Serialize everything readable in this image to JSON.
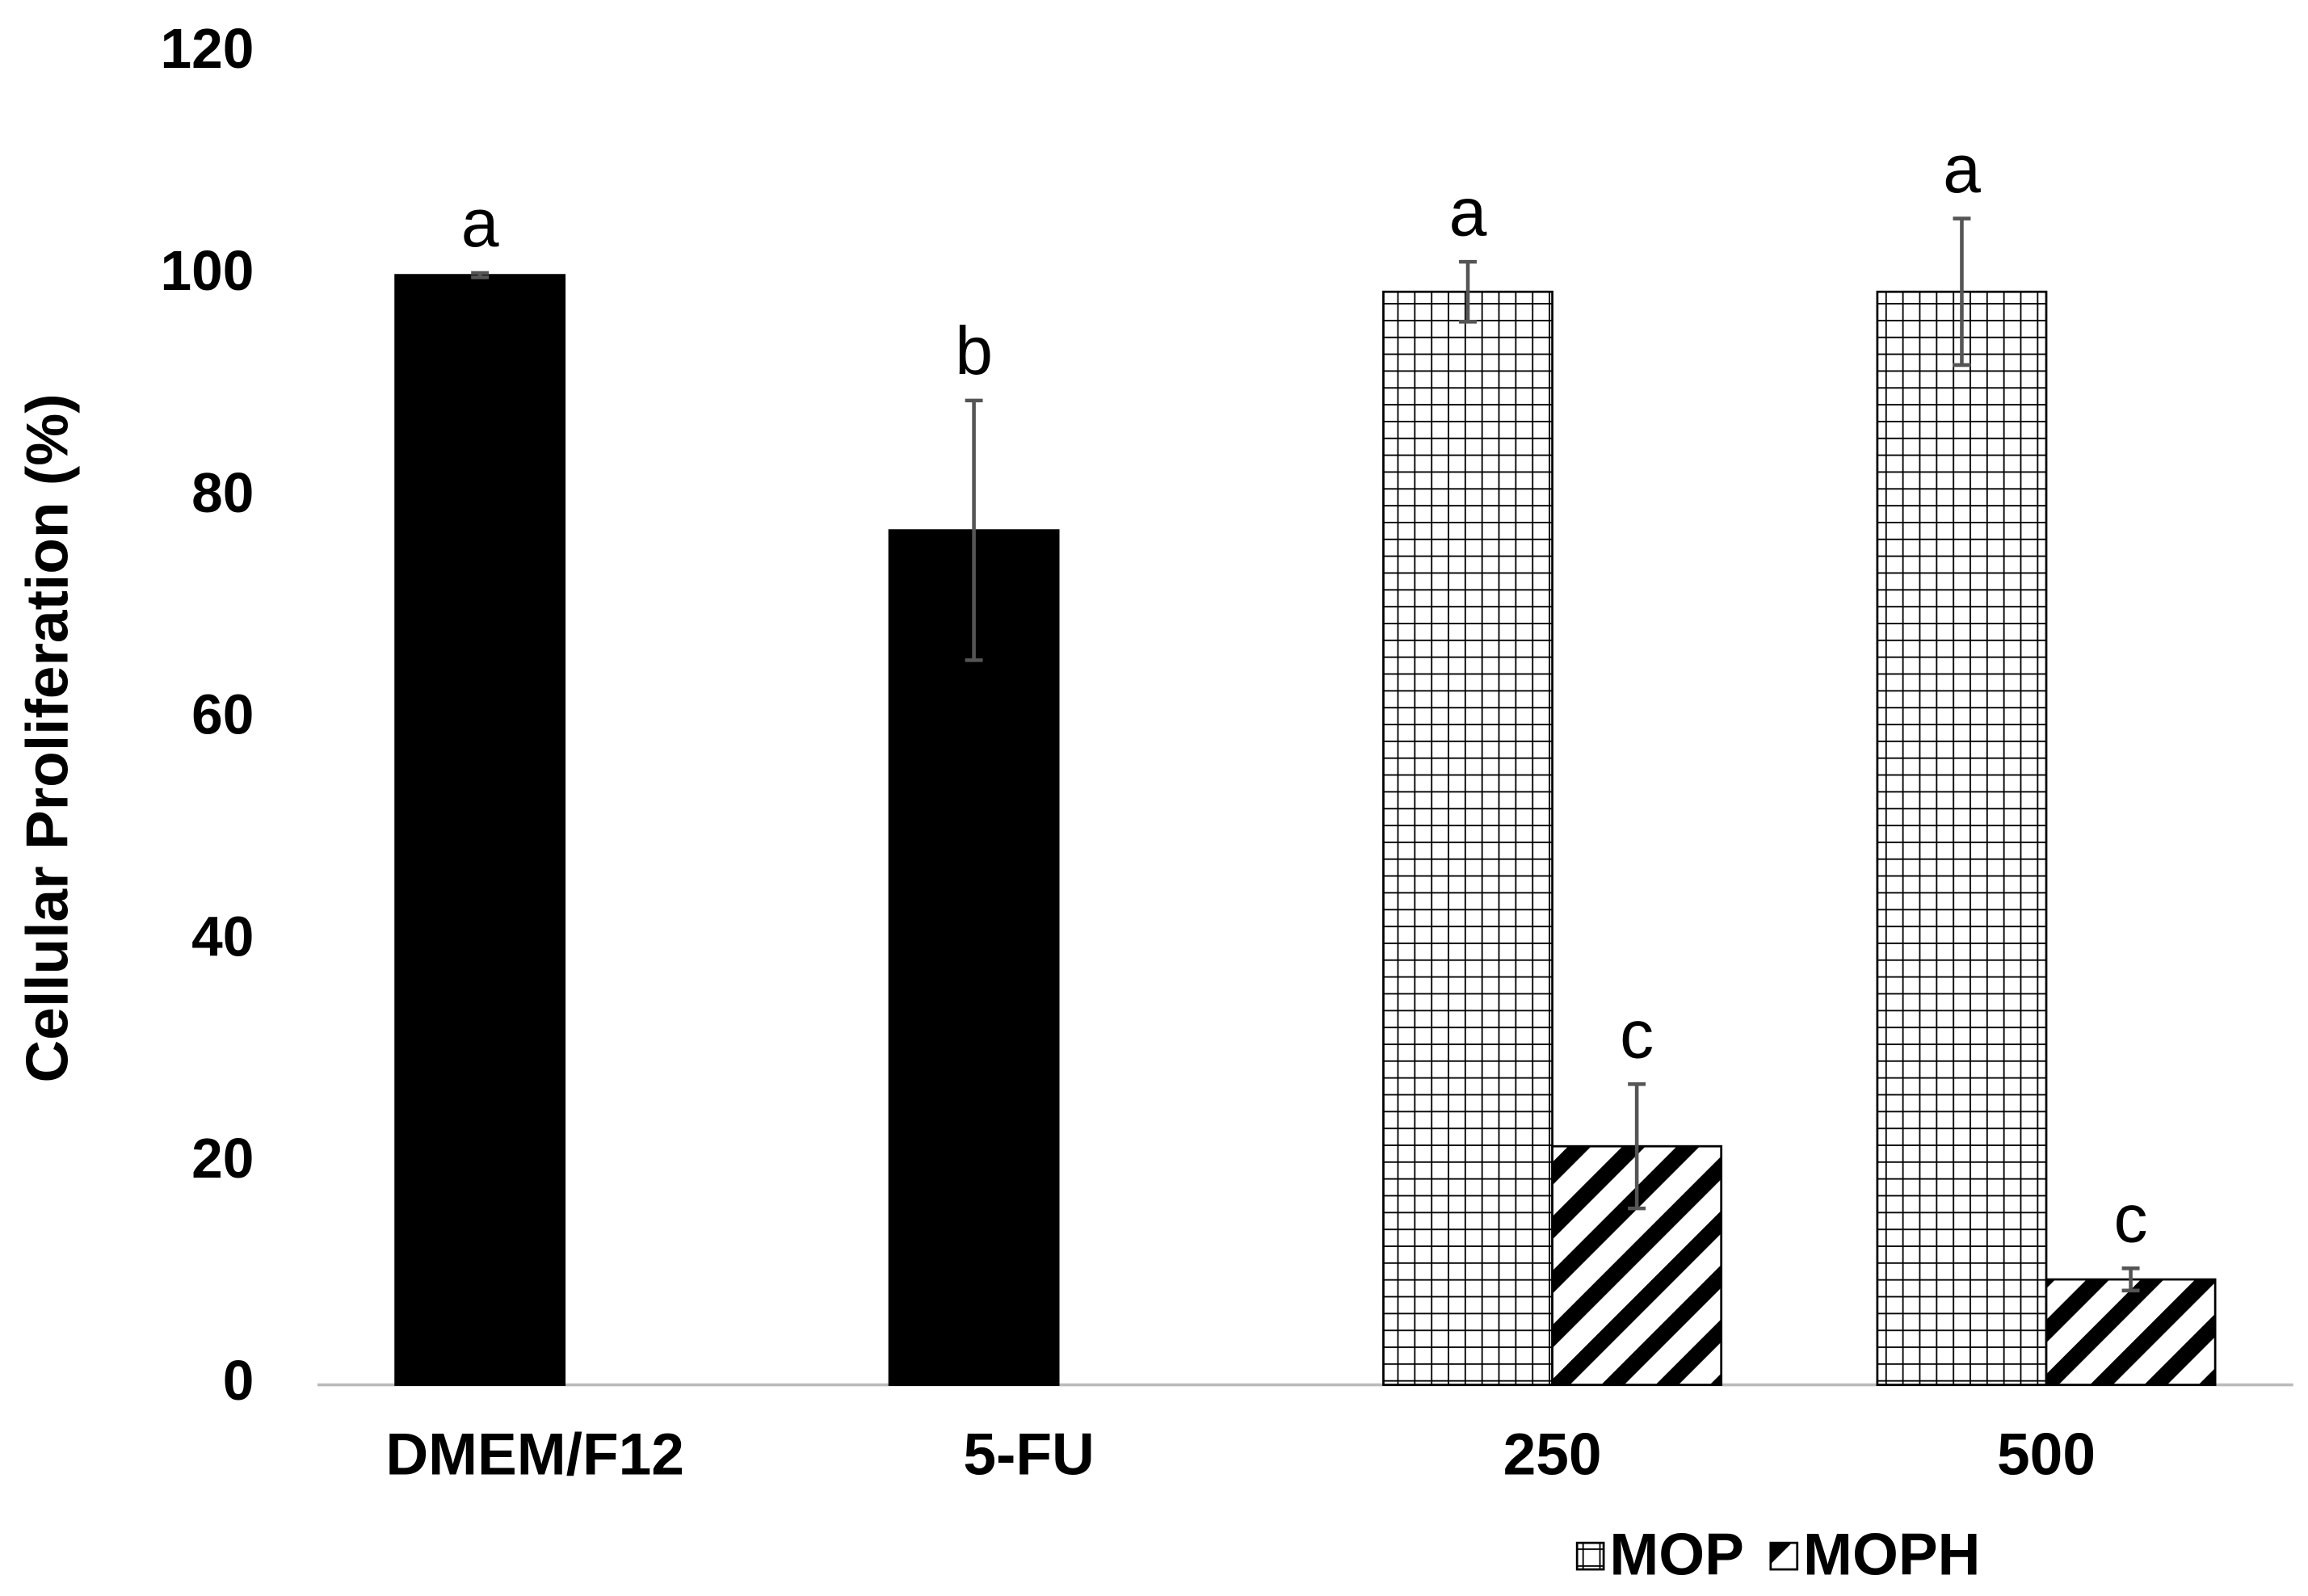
{
  "chart_data": {
    "type": "bar",
    "y_label": "Cellular Proliferation (%)",
    "categories": [
      "DMEM/F12",
      "5-FU",
      "250",
      "500"
    ],
    "series": [
      {
        "color": "#000000",
        "pattern": "solid",
        "values": [
          100,
          77,
          null,
          null
        ],
        "errors": [
          0.2,
          11.7,
          null,
          null
        ],
        "letters": [
          "a",
          "b",
          null,
          null
        ]
      },
      {
        "name": "MOP",
        "color": "#000000",
        "pattern": "grid",
        "values": [
          null,
          null,
          98.5,
          98.5
        ],
        "errors": [
          null,
          null,
          2.7,
          6.6
        ],
        "letters": [
          null,
          null,
          "a",
          "a"
        ]
      },
      {
        "name": "MOPH",
        "color": "#000000",
        "pattern": "diagonal",
        "values": [
          null,
          null,
          21.5,
          9.5
        ],
        "errors": [
          null,
          null,
          5.6,
          1.0
        ],
        "letters": [
          null,
          null,
          "c",
          "c"
        ]
      }
    ],
    "ylim": [
      0,
      120
    ],
    "yticks": [
      0,
      20,
      40,
      60,
      80,
      100,
      120
    ],
    "grid": false,
    "legend": "bottom-right"
  }
}
